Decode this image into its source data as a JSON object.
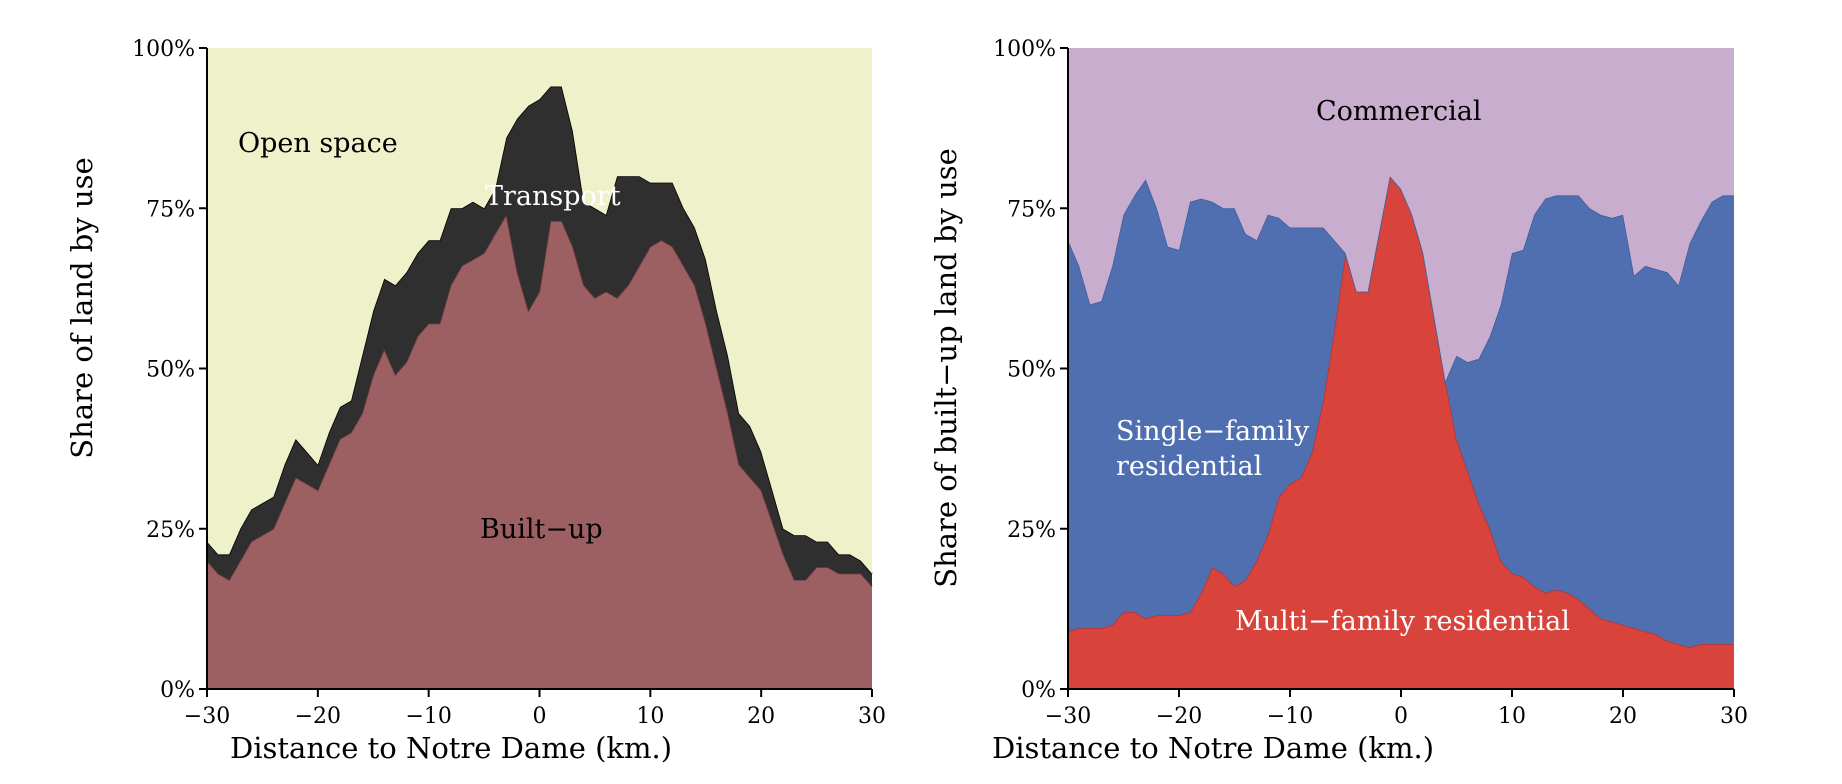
{
  "chart_data": [
    {
      "type": "area",
      "stacked": true,
      "xlabel": "Distance to Notre Dame (km.)",
      "ylabel": "Share of land by use",
      "xlim": [
        -30,
        30
      ],
      "ylim": [
        0,
        100
      ],
      "xticks": [
        "−30",
        "−20",
        "−10",
        "0",
        "10",
        "20",
        "30"
      ],
      "yticks": [
        "0%",
        "25%",
        "50%",
        "75%",
        "100%"
      ],
      "x": [
        -30,
        -29,
        -28,
        -27,
        -26,
        -25,
        -24,
        -23,
        -22,
        -21,
        -20,
        -19,
        -18,
        -17,
        -16,
        -15,
        -14,
        -13,
        -12,
        -11,
        -10,
        -9,
        -8,
        -7,
        -6,
        -5,
        -4,
        -3,
        -2,
        -1,
        0,
        1,
        2,
        3,
        4,
        5,
        6,
        7,
        8,
        9,
        10,
        11,
        12,
        13,
        14,
        15,
        16,
        17,
        18,
        19,
        20,
        21,
        22,
        23,
        24,
        25,
        26,
        27,
        28,
        29,
        30
      ],
      "series": [
        {
          "name": "Built−up",
          "color": "#9c6062",
          "label_color": "#000000",
          "values": [
            20,
            18,
            17,
            20,
            23,
            24,
            25,
            29,
            33,
            32,
            31,
            35,
            39,
            40,
            43,
            49,
            53,
            49,
            51,
            55,
            57,
            57,
            63,
            66,
            67,
            68,
            71,
            74,
            65,
            59,
            62,
            73,
            73,
            69,
            63,
            61,
            62,
            61,
            63,
            66,
            69,
            70,
            69,
            66,
            63,
            57,
            50,
            43,
            35,
            33,
            31,
            26,
            21,
            17,
            17,
            19,
            19,
            18,
            18,
            18,
            16
          ]
        },
        {
          "name": "Transport",
          "color": "#2f2f2f",
          "label_color": "#ffffff",
          "values": [
            3,
            3,
            4,
            5,
            5,
            5,
            5,
            6,
            6,
            5,
            4,
            5,
            5,
            5,
            9,
            10,
            11,
            14,
            14,
            13,
            13,
            13,
            12,
            9,
            9,
            7,
            7,
            12,
            24,
            32,
            30,
            21,
            21,
            18,
            13,
            14,
            12,
            19,
            17,
            14,
            10,
            9,
            10,
            9,
            9,
            10,
            9,
            9,
            8,
            8,
            6,
            5,
            4,
            7,
            7,
            4,
            4,
            3,
            3,
            2,
            2
          ]
        },
        {
          "name": "Open space",
          "color": "#eff1ca",
          "label_color": "#000000",
          "values": [
            77,
            79,
            79,
            75,
            72,
            71,
            70,
            65,
            61,
            63,
            65,
            60,
            56,
            55,
            48,
            41,
            36,
            37,
            35,
            32,
            30,
            30,
            25,
            25,
            24,
            25,
            22,
            14,
            11,
            9,
            8,
            6,
            6,
            13,
            24,
            25,
            26,
            20,
            20,
            20,
            21,
            21,
            21,
            25,
            28,
            33,
            41,
            48,
            57,
            59,
            63,
            69,
            75,
            76,
            76,
            77,
            77,
            79,
            79,
            80,
            82
          ]
        }
      ]
    },
    {
      "type": "area",
      "stacked": true,
      "xlabel": "Distance to Notre Dame (km.)",
      "ylabel": "Share of built−up land by use",
      "xlim": [
        -30,
        30
      ],
      "ylim": [
        0,
        100
      ],
      "xticks": [
        "−30",
        "−20",
        "−10",
        "0",
        "10",
        "20",
        "30"
      ],
      "yticks": [
        "0%",
        "25%",
        "50%",
        "75%",
        "100%"
      ],
      "x": [
        -30,
        -29,
        -28,
        -27,
        -26,
        -25,
        -24,
        -23,
        -22,
        -21,
        -20,
        -19,
        -18,
        -17,
        -16,
        -15,
        -14,
        -13,
        -12,
        -11,
        -10,
        -9,
        -8,
        -7,
        -6,
        -5,
        -4,
        -3,
        -2,
        -1,
        0,
        1,
        2,
        3,
        4,
        5,
        6,
        7,
        8,
        9,
        10,
        11,
        12,
        13,
        14,
        15,
        16,
        17,
        18,
        19,
        20,
        21,
        22,
        23,
        24,
        25,
        26,
        27,
        28,
        29,
        30
      ],
      "series": [
        {
          "name": "Multi−family residential",
          "color": "#d8433c",
          "label_color": "#ffffff",
          "values": [
            9,
            9.5,
            9.5,
            9.5,
            10,
            12,
            12,
            11,
            11.5,
            11.5,
            11.5,
            12,
            15,
            19,
            18,
            16,
            17,
            20,
            24,
            30,
            32,
            33,
            37,
            45,
            56,
            68,
            62,
            62,
            71,
            80,
            78,
            74,
            68,
            58,
            48,
            39,
            34,
            29,
            25,
            20,
            18,
            17.5,
            16,
            15,
            15.5,
            15,
            14,
            12.5,
            11,
            10.5,
            10,
            9.5,
            9,
            8.5,
            7.5,
            7,
            6.5,
            7,
            7,
            7,
            7
          ]
        },
        {
          "name": "Single−family residential",
          "color": "#4f6fb0",
          "label_color": "#ffffff",
          "values": [
            61,
            56.5,
            50.5,
            51,
            56,
            62,
            65,
            68.5,
            63.5,
            57.5,
            57,
            64,
            61.5,
            57,
            57,
            59,
            54,
            50,
            50,
            43.5,
            40,
            39,
            35,
            27,
            14,
            0,
            0,
            0,
            0,
            0,
            0,
            0,
            0,
            0,
            0,
            13,
            17,
            22.5,
            30,
            40,
            50,
            51,
            58,
            61.5,
            61.5,
            62,
            63,
            62.5,
            63,
            63,
            64,
            55,
            57,
            57,
            57.5,
            56,
            63,
            66,
            69,
            70,
            70
          ]
        },
        {
          "name": "Commercial",
          "color": "#c9adcf",
          "label_color": "#000000",
          "values": [
            30,
            34,
            40,
            39.5,
            34,
            26,
            23,
            20.5,
            25,
            31,
            31.5,
            24,
            23.5,
            24,
            25,
            25,
            29,
            30,
            26,
            26.5,
            28,
            28,
            28,
            28,
            30,
            32,
            38,
            38,
            29,
            20,
            22,
            26,
            32,
            42,
            52,
            48,
            49,
            48.5,
            45,
            40,
            32,
            31.5,
            26,
            23.5,
            23,
            23,
            23,
            25,
            26,
            26.5,
            26,
            35.5,
            34,
            34.5,
            35,
            37,
            30.5,
            27,
            24,
            23,
            23
          ]
        }
      ]
    }
  ],
  "labels": {
    "left_open_space": "Open space",
    "left_transport": "Transport",
    "left_builtup": "Built−up",
    "right_commercial": "Commercial",
    "right_single_line1": "Single−family",
    "right_single_line2": "residential",
    "right_multi": "Multi−family residential"
  }
}
